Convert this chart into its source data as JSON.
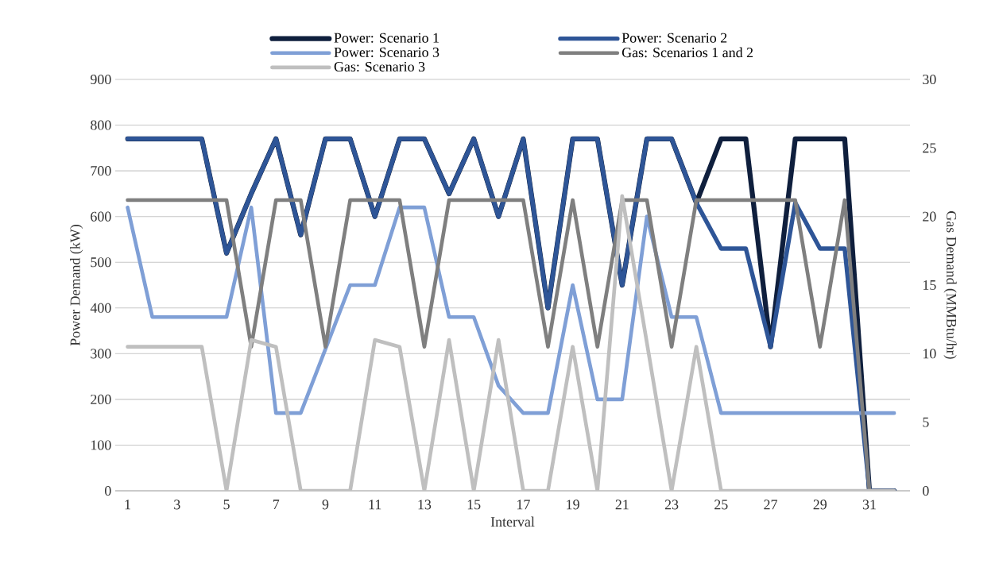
{
  "chart_data": {
    "type": "line",
    "categories": [
      "1",
      null,
      "3",
      null,
      "5",
      null,
      "7",
      null,
      "9",
      null,
      "11",
      null,
      "13",
      null,
      "15",
      null,
      "17",
      null,
      "19",
      null,
      "21",
      null,
      "23",
      null,
      "25",
      null,
      "27",
      null,
      "29",
      null,
      "31",
      null
    ],
    "series": [
      {
        "name": "Power: Scenario 1",
        "color": "#0f1f3d",
        "values": [
          770,
          770,
          770,
          770,
          520,
          650,
          770,
          560,
          770,
          770,
          600,
          770,
          770,
          650,
          770,
          600,
          770,
          400,
          770,
          770,
          450,
          770,
          770,
          630,
          770,
          770,
          315,
          770,
          770,
          770,
          0,
          0
        ]
      },
      {
        "name": "Power: Scenario 2",
        "color": "#2e5597",
        "values": [
          770,
          770,
          770,
          770,
          520,
          650,
          770,
          560,
          770,
          770,
          600,
          770,
          770,
          650,
          770,
          600,
          770,
          400,
          770,
          770,
          450,
          770,
          770,
          630,
          530,
          530,
          315,
          630,
          530,
          530,
          0,
          0
        ]
      },
      {
        "name": "Power: Scenario 3",
        "color": "#7f9fd6",
        "values": [
          620,
          380,
          380,
          380,
          380,
          620,
          170,
          170,
          310,
          450,
          450,
          620,
          620,
          380,
          380,
          230,
          170,
          170,
          450,
          200,
          200,
          600,
          380,
          380,
          170,
          170,
          170,
          170,
          170,
          170,
          170,
          170
        ]
      },
      {
        "name": "Gas: Scenarios 1 and 2",
        "color": "#7f7f7f",
        "axis": "y2",
        "values": [
          21.2,
          21.2,
          21.2,
          21.2,
          21.2,
          10.5,
          21.2,
          21.2,
          10.5,
          21.2,
          21.2,
          21.2,
          10.5,
          21.2,
          21.2,
          21.2,
          21.2,
          10.5,
          21.2,
          10.5,
          21.2,
          21.2,
          10.5,
          21.2,
          21.2,
          21.2,
          21.2,
          21.2,
          10.5,
          21.2,
          0,
          0
        ]
      },
      {
        "name": "Gas: Scenario 3",
        "color": "#bfbfbf",
        "axis": "y2",
        "values": [
          10.5,
          10.5,
          10.5,
          10.5,
          0,
          11,
          10.5,
          0,
          0,
          0,
          11,
          10.5,
          0,
          11,
          0,
          11,
          0,
          0,
          10.5,
          0,
          21.5,
          10.8,
          0,
          10.5,
          0,
          0,
          0,
          0,
          0,
          0,
          0,
          0
        ]
      }
    ],
    "xlabel": "Interval",
    "ylabel": "Power Demand (kW)",
    "y2label": "Gas Demand (MMBtu/hr)",
    "ylim": [
      0,
      900
    ],
    "yticks": [
      0,
      100,
      200,
      300,
      400,
      500,
      600,
      700,
      800,
      900
    ],
    "y2lim": [
      0,
      30
    ],
    "y2ticks": [
      0,
      5,
      10,
      15,
      20,
      25,
      30
    ],
    "grid": "y",
    "legend": "top"
  }
}
